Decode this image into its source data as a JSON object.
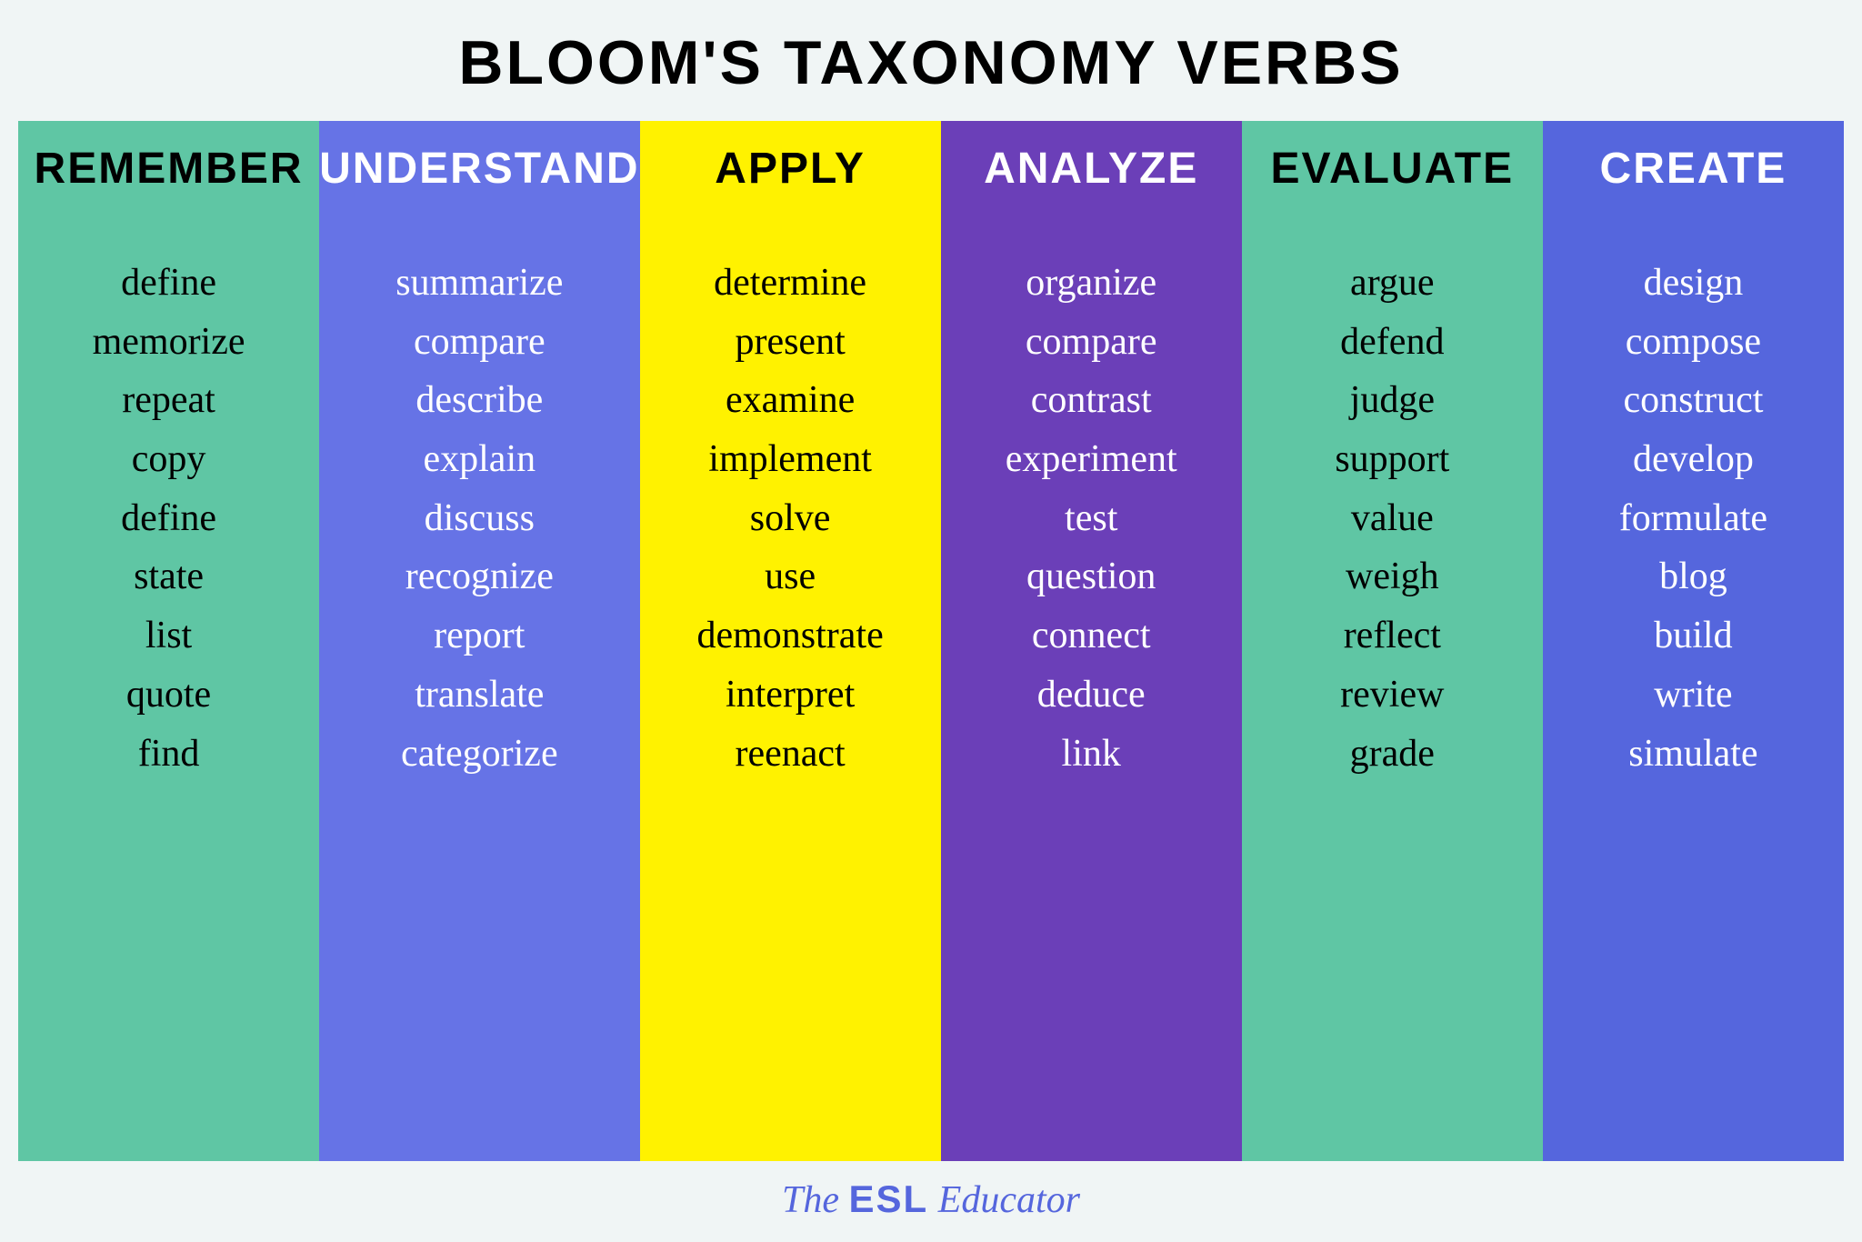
{
  "title": "BLOOM'S TAXONOMY VERBS",
  "footer": {
    "pre": "The ",
    "mid": "ESL",
    "post": " Educator"
  },
  "columns": [
    {
      "header": "REMEMBER",
      "bg": "#5fc6a4",
      "header_color": "#000000",
      "verb_color": "#000000",
      "verbs": [
        "define",
        "memorize",
        "repeat",
        "copy",
        "define",
        "state",
        "list",
        "quote",
        "find"
      ]
    },
    {
      "header": "UNDERSTAND",
      "bg": "#6673e6",
      "header_color": "#ffffff",
      "verb_color": "#ffffff",
      "verbs": [
        "summarize",
        "compare",
        "describe",
        "explain",
        "discuss",
        "recognize",
        "report",
        "translate",
        "categorize"
      ]
    },
    {
      "header": "APPLY",
      "bg": "#fff200",
      "header_color": "#000000",
      "verb_color": "#000000",
      "verbs": [
        "determine",
        "present",
        "examine",
        "implement",
        "solve",
        "use",
        "demonstrate",
        "interpret",
        "reenact"
      ]
    },
    {
      "header": "ANALYZE",
      "bg": "#6b3fb8",
      "header_color": "#ffffff",
      "verb_color": "#ffffff",
      "verbs": [
        "organize",
        "compare",
        "contrast",
        "experiment",
        "test",
        "question",
        "connect",
        "deduce",
        "link"
      ]
    },
    {
      "header": "EVALUATE",
      "bg": "#5fc6a4",
      "header_color": "#000000",
      "verb_color": "#000000",
      "verbs": [
        "argue",
        "defend",
        "judge",
        "support",
        "value",
        "weigh",
        "reflect",
        "review",
        "grade"
      ]
    },
    {
      "header": "CREATE",
      "bg": "#5566dd",
      "header_color": "#ffffff",
      "verb_color": "#ffffff",
      "verbs": [
        "design",
        "compose",
        "construct",
        "develop",
        "formulate",
        "blog",
        "build",
        "write",
        "simulate"
      ]
    }
  ]
}
